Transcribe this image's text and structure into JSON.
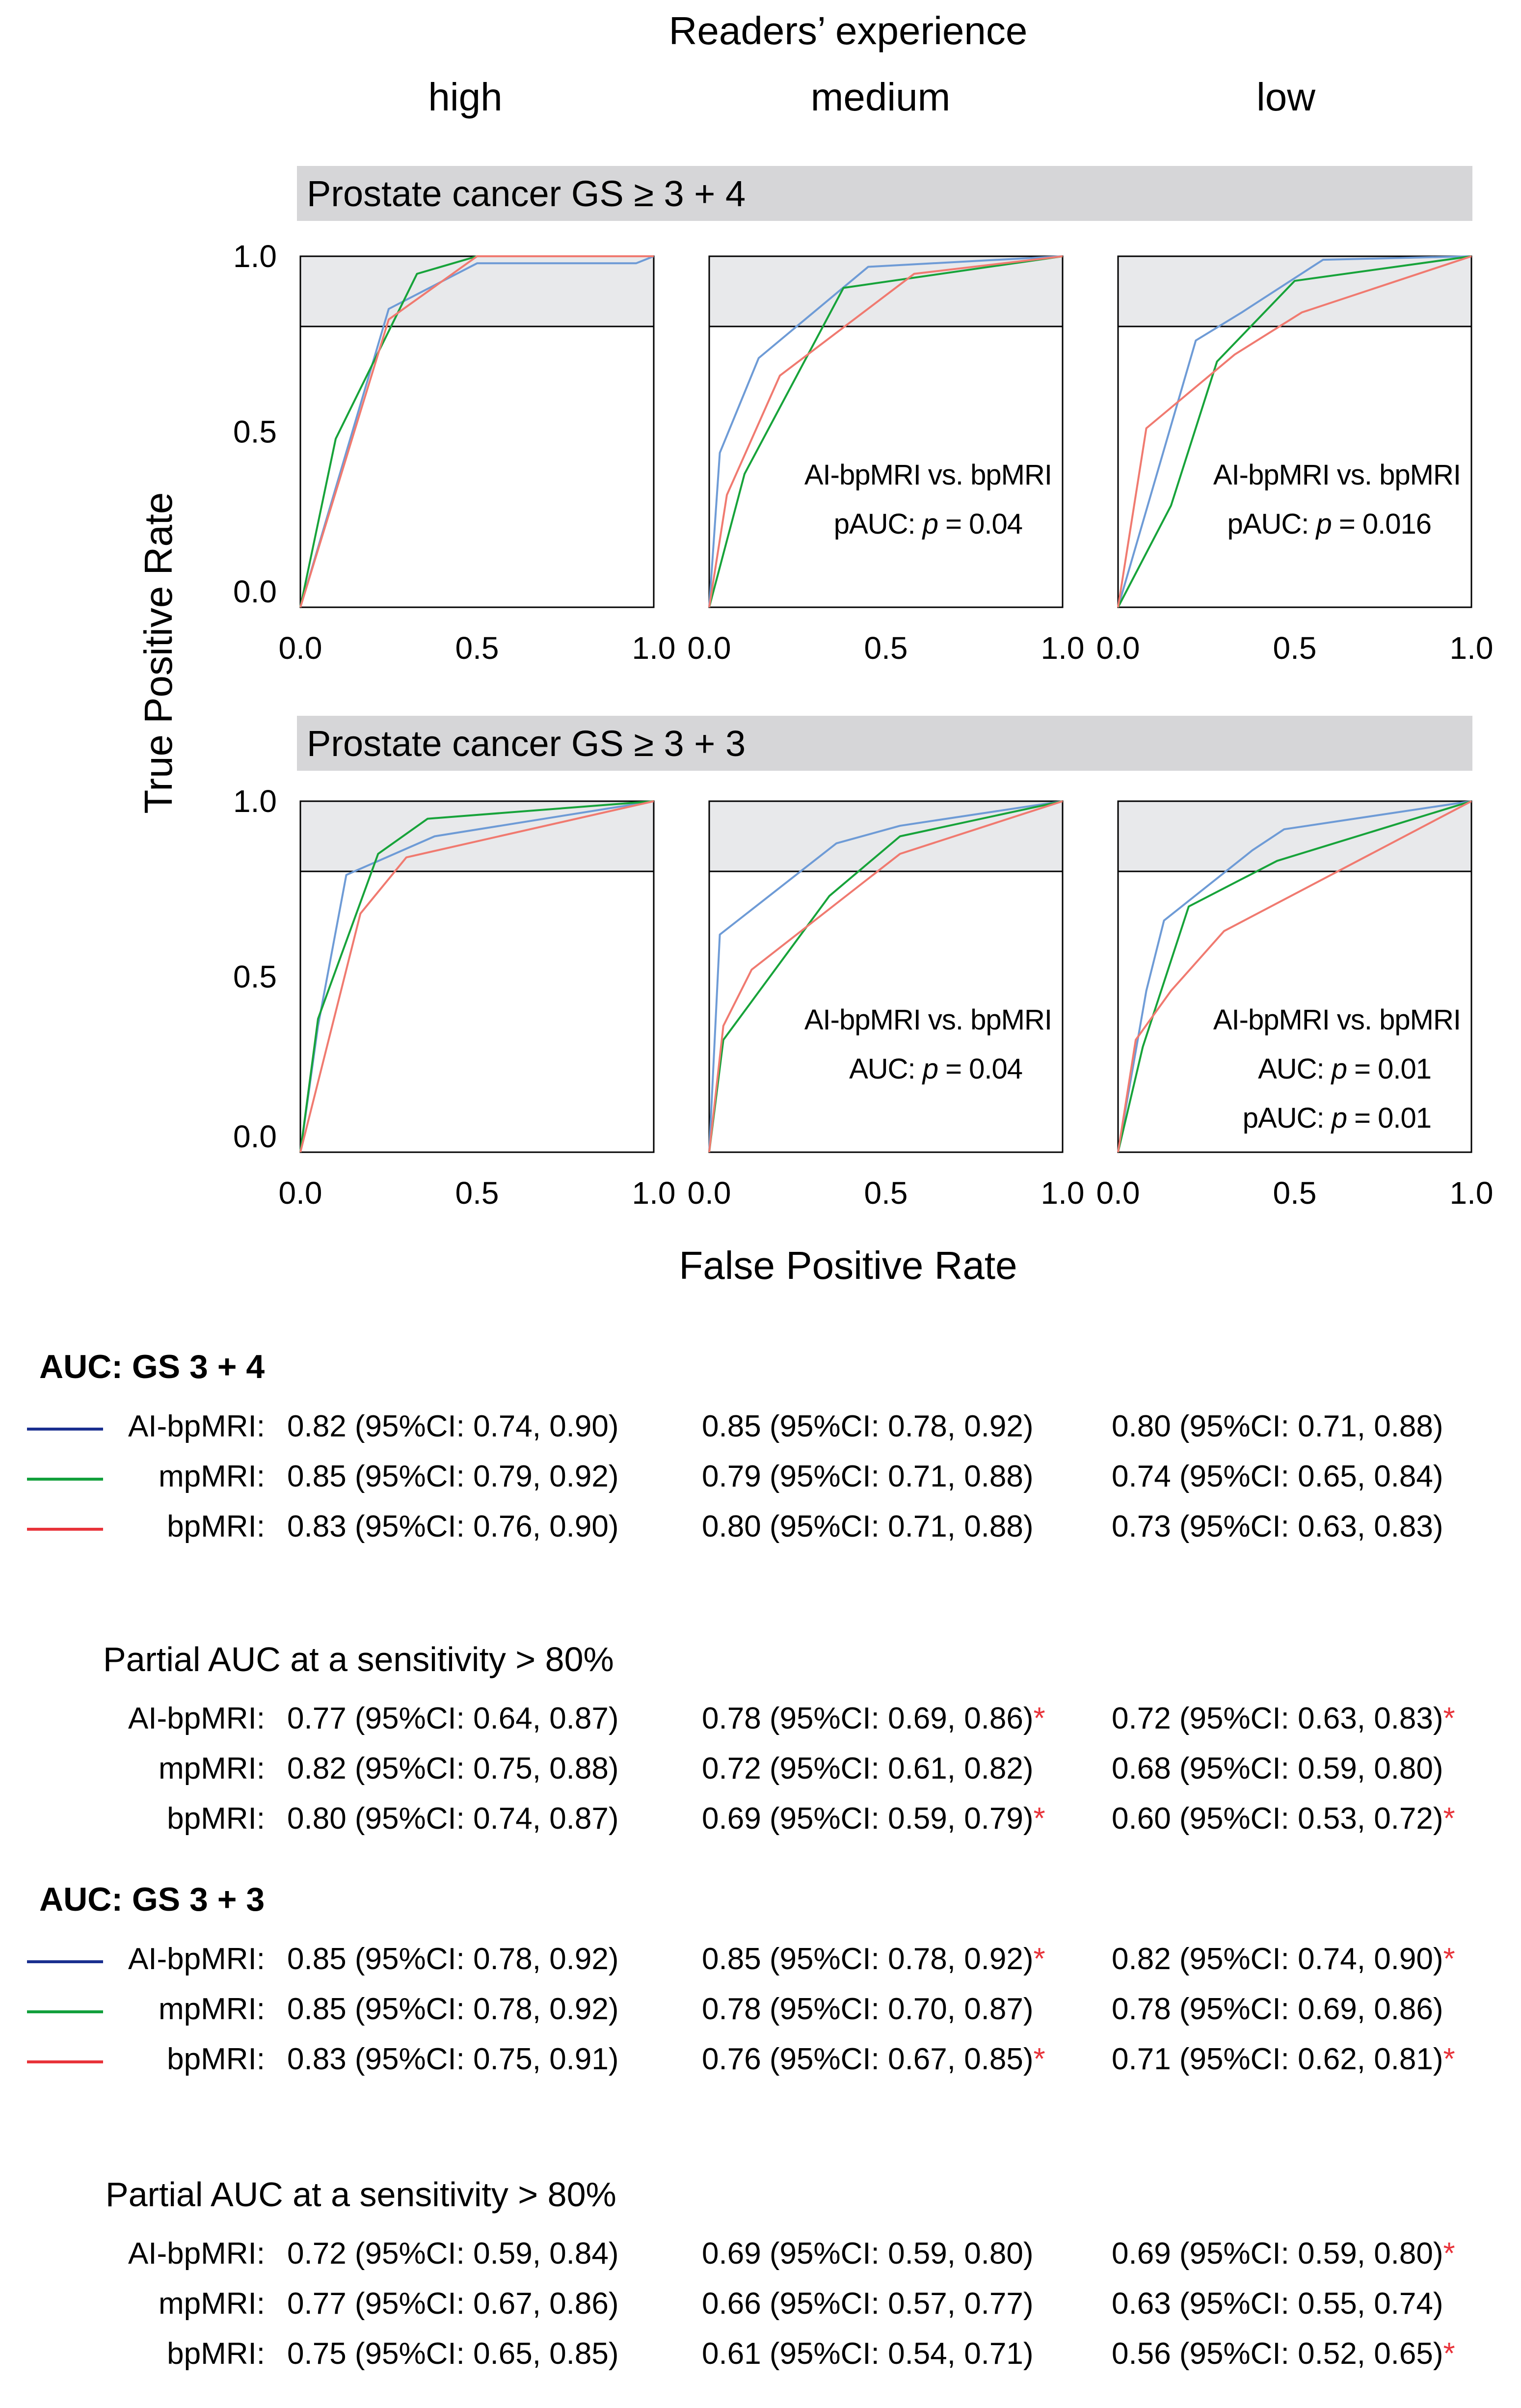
{
  "header": {
    "super_title": "Readers’ experience",
    "columns": [
      "high",
      "medium",
      "low"
    ]
  },
  "axes": {
    "ylabel": "True Positive Rate",
    "xlabel": "False Positive Rate",
    "xticks": [
      "0.0",
      "0.5",
      "1.0"
    ],
    "yticks": [
      "0.0",
      "0.5",
      "1.0"
    ]
  },
  "colors": {
    "ai_bpmri": "#6e9bd6",
    "mpmri": "#17a33a",
    "bpmri": "#f07a70",
    "ai_bpmri_legend": "#1a2f8f",
    "mpmri_legend": "#12a03c",
    "bpmri_legend": "#e8333a",
    "significant": "#e8333a",
    "banner": "#d6d6d8",
    "shade": "#e8e9eb"
  },
  "chart_data": [
    {
      "type": "line",
      "section": "Prostate cancer GS ≥ 3 + 4",
      "column": "high",
      "xlim": [
        0,
        1
      ],
      "ylim": [
        0,
        1
      ],
      "shaded_tpr_min": 0.8,
      "series": [
        {
          "x": [
            0,
            0.25,
            0.5,
            0.95,
            1
          ],
          "y": [
            0,
            0.85,
            0.98,
            0.98,
            1
          ],
          "color": "#6e9bd6"
        },
        {
          "x": [
            0,
            0.1,
            0.33,
            0.5,
            1
          ],
          "y": [
            0,
            0.48,
            0.95,
            1,
            1
          ],
          "color": "#17a33a"
        },
        {
          "x": [
            0,
            0.25,
            0.5,
            1
          ],
          "y": [
            0,
            0.82,
            1,
            1
          ],
          "color": "#f07a70"
        }
      ],
      "annotations": []
    },
    {
      "type": "line",
      "section": "Prostate cancer GS ≥ 3 + 4",
      "column": "medium",
      "xlim": [
        0,
        1
      ],
      "ylim": [
        0,
        1
      ],
      "shaded_tpr_min": 0.8,
      "series": [
        {
          "x": [
            0,
            0.03,
            0.14,
            0.45,
            1
          ],
          "y": [
            0,
            0.44,
            0.71,
            0.97,
            1
          ],
          "color": "#6e9bd6"
        },
        {
          "x": [
            0,
            0.1,
            0.38,
            1
          ],
          "y": [
            0,
            0.38,
            0.91,
            1
          ],
          "color": "#17a33a"
        },
        {
          "x": [
            0,
            0.05,
            0.2,
            0.58,
            1
          ],
          "y": [
            0,
            0.32,
            0.66,
            0.95,
            1
          ],
          "color": "#f07a70"
        }
      ],
      "annotations": [
        "AI-bpMRI vs. bpMRI",
        "pAUC: ",
        "p",
        " = 0.04"
      ]
    },
    {
      "type": "line",
      "section": "Prostate cancer GS ≥ 3 + 4",
      "column": "low",
      "xlim": [
        0,
        1
      ],
      "ylim": [
        0,
        1
      ],
      "shaded_tpr_min": 0.8,
      "series": [
        {
          "x": [
            0,
            0.22,
            0.35,
            0.58,
            1
          ],
          "y": [
            0,
            0.76,
            0.84,
            0.99,
            1
          ],
          "color": "#6e9bd6"
        },
        {
          "x": [
            0,
            0.15,
            0.28,
            0.5,
            1
          ],
          "y": [
            0,
            0.29,
            0.7,
            0.93,
            1
          ],
          "color": "#17a33a"
        },
        {
          "x": [
            0,
            0.08,
            0.33,
            0.52,
            1
          ],
          "y": [
            0,
            0.51,
            0.72,
            0.84,
            1
          ],
          "color": "#f07a70"
        }
      ],
      "annotations": [
        "AI-bpMRI vs. bpMRI",
        "pAUC: ",
        "p",
        " = 0.016"
      ]
    },
    {
      "type": "line",
      "section": "Prostate cancer GS ≥ 3 + 3",
      "column": "high",
      "xlim": [
        0,
        1
      ],
      "ylim": [
        0,
        1
      ],
      "shaded_tpr_min": 0.8,
      "series": [
        {
          "x": [
            0,
            0.05,
            0.13,
            0.38,
            1
          ],
          "y": [
            0,
            0.36,
            0.79,
            0.9,
            1
          ],
          "color": "#6e9bd6"
        },
        {
          "x": [
            0,
            0.05,
            0.22,
            0.36,
            1
          ],
          "y": [
            0,
            0.38,
            0.85,
            0.95,
            1
          ],
          "color": "#17a33a"
        },
        {
          "x": [
            0,
            0.17,
            0.3,
            1
          ],
          "y": [
            0,
            0.68,
            0.84,
            1
          ],
          "color": "#f07a70"
        }
      ],
      "annotations": []
    },
    {
      "type": "line",
      "section": "Prostate cancer GS ≥ 3 + 3",
      "column": "medium",
      "xlim": [
        0,
        1
      ],
      "ylim": [
        0,
        1
      ],
      "shaded_tpr_min": 0.8,
      "series": [
        {
          "x": [
            0,
            0.03,
            0.36,
            0.54,
            1
          ],
          "y": [
            0,
            0.62,
            0.88,
            0.93,
            1
          ],
          "color": "#6e9bd6"
        },
        {
          "x": [
            0,
            0.04,
            0.34,
            0.54,
            1
          ],
          "y": [
            0,
            0.32,
            0.73,
            0.9,
            1
          ],
          "color": "#17a33a"
        },
        {
          "x": [
            0,
            0.04,
            0.12,
            0.54,
            1
          ],
          "y": [
            0,
            0.36,
            0.52,
            0.85,
            1
          ],
          "color": "#f07a70"
        }
      ],
      "annotations": [
        "AI-bpMRI vs. bpMRI",
        "AUC: ",
        "p",
        " = 0.04"
      ]
    },
    {
      "type": "line",
      "section": "Prostate cancer GS ≥ 3 + 3",
      "column": "low",
      "xlim": [
        0,
        1
      ],
      "ylim": [
        0,
        1
      ],
      "shaded_tpr_min": 0.8,
      "series": [
        {
          "x": [
            0,
            0.08,
            0.13,
            0.38,
            0.47,
            1
          ],
          "y": [
            0,
            0.46,
            0.66,
            0.86,
            0.92,
            1
          ],
          "color": "#6e9bd6"
        },
        {
          "x": [
            0,
            0.07,
            0.2,
            0.45,
            1
          ],
          "y": [
            0,
            0.3,
            0.7,
            0.83,
            1
          ],
          "color": "#17a33a"
        },
        {
          "x": [
            0,
            0.05,
            0.15,
            0.3,
            1
          ],
          "y": [
            0,
            0.32,
            0.46,
            0.63,
            1
          ],
          "color": "#f07a70"
        }
      ],
      "annotations": [
        "AI-bpMRI vs. bpMRI",
        "AUC: ",
        "p",
        " = 0.01",
        "pAUC: ",
        "p",
        " = 0.01"
      ]
    }
  ],
  "tables": [
    {
      "title": "AUC: GS 3 + 4",
      "bold": true,
      "show_legend": true,
      "rows": [
        {
          "label": "AI-bpMRI:",
          "legend": "ai_bpmri_legend",
          "values": [
            "0.82 (95%CI: 0.74, 0.90)",
            "0.85 (95%CI: 0.78, 0.92)",
            "0.80 (95%CI: 0.71, 0.88)"
          ],
          "marks": [
            "",
            "",
            ""
          ]
        },
        {
          "label": "mpMRI:",
          "legend": "mpmri_legend",
          "values": [
            "0.85 (95%CI: 0.79, 0.92)",
            "0.79 (95%CI: 0.71, 0.88)",
            "0.74 (95%CI: 0.65, 0.84)"
          ],
          "marks": [
            "",
            "",
            ""
          ]
        },
        {
          "label": "bpMRI:",
          "legend": "bpmri_legend",
          "values": [
            "0.83 (95%CI: 0.76, 0.90)",
            "0.80 (95%CI: 0.71, 0.88)",
            "0.73 (95%CI: 0.63, 0.83)"
          ],
          "marks": [
            "",
            "",
            ""
          ]
        }
      ]
    },
    {
      "title": "Partial AUC at a sensitivity > 80%",
      "bold": false,
      "show_legend": false,
      "rows": [
        {
          "label": "AI-bpMRI:",
          "values": [
            "0.77 (95%CI: 0.64, 0.87)",
            "0.78 (95%CI: 0.69, 0.86)",
            "0.72 (95%CI: 0.63, 0.83)"
          ],
          "marks": [
            "",
            "*",
            "*"
          ]
        },
        {
          "label": "mpMRI:",
          "values": [
            "0.82 (95%CI: 0.75, 0.88)",
            "0.72 (95%CI: 0.61, 0.82)",
            "0.68 (95%CI: 0.59, 0.80)"
          ],
          "marks": [
            "",
            "",
            ""
          ]
        },
        {
          "label": "bpMRI:",
          "values": [
            "0.80 (95%CI: 0.74, 0.87)",
            "0.69 (95%CI: 0.59, 0.79)",
            "0.60 (95%CI: 0.53, 0.72)"
          ],
          "marks": [
            "",
            "*",
            "*"
          ]
        }
      ]
    },
    {
      "title": "AUC: GS 3 + 3",
      "bold": true,
      "show_legend": true,
      "rows": [
        {
          "label": "AI-bpMRI:",
          "legend": "ai_bpmri_legend",
          "values": [
            "0.85 (95%CI: 0.78, 0.92)",
            "0.85 (95%CI: 0.78, 0.92)",
            "0.82 (95%CI: 0.74, 0.90)"
          ],
          "marks": [
            "",
            "*",
            "*"
          ]
        },
        {
          "label": "mpMRI:",
          "legend": "mpmri_legend",
          "values": [
            "0.85 (95%CI: 0.78, 0.92)",
            "0.78 (95%CI: 0.70, 0.87)",
            "0.78 (95%CI: 0.69, 0.86)"
          ],
          "marks": [
            "",
            "",
            ""
          ]
        },
        {
          "label": "bpMRI:",
          "legend": "bpmri_legend",
          "values": [
            "0.83 (95%CI: 0.75, 0.91)",
            "0.76 (95%CI: 0.67, 0.85)",
            "0.71 (95%CI: 0.62, 0.81)"
          ],
          "marks": [
            "",
            "*",
            "*"
          ]
        }
      ]
    },
    {
      "title": "Partial AUC at a sensitivity > 80%",
      "bold": false,
      "show_legend": false,
      "rows": [
        {
          "label": "AI-bpMRI:",
          "values": [
            "0.72 (95%CI: 0.59, 0.84)",
            "0.69 (95%CI: 0.59, 0.80)",
            "0.69 (95%CI: 0.59, 0.80)"
          ],
          "marks": [
            "",
            "",
            "*"
          ]
        },
        {
          "label": "mpMRI:",
          "values": [
            "0.77 (95%CI: 0.67, 0.86)",
            "0.66 (95%CI: 0.57, 0.77)",
            "0.63 (95%CI: 0.55, 0.74)"
          ],
          "marks": [
            "",
            "",
            ""
          ]
        },
        {
          "label": "bpMRI:",
          "values": [
            "0.75 (95%CI: 0.65, 0.85)",
            "0.61 (95%CI: 0.54, 0.71)",
            "0.56 (95%CI: 0.52, 0.65)"
          ],
          "marks": [
            "",
            "",
            "*"
          ]
        }
      ]
    }
  ]
}
